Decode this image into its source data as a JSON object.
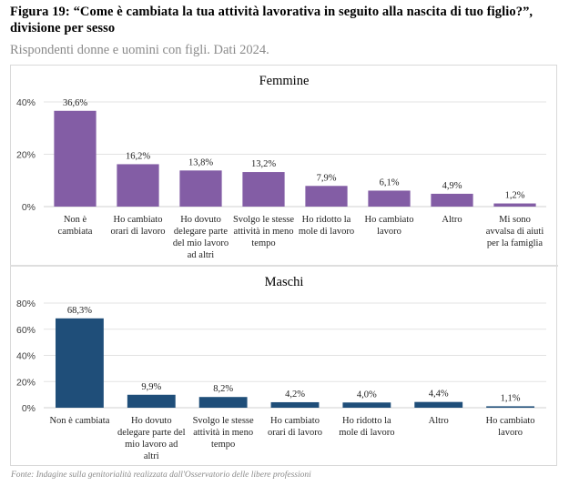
{
  "figure": {
    "title": "Figura 19: “Come è cambiata la tua attività lavorativa in seguito alla nascita di tuo figlio?”, divisione per sesso",
    "subtitle": "Rispondenti donne e uomini con figli. Dati 2024.",
    "source": "Fonte: Indagine sulla genitorialità realizzata dall'Osservatorio delle libere professioni"
  },
  "chart_data": [
    {
      "type": "bar",
      "title": "Femmine",
      "color": "#835DA5",
      "xlabel": "",
      "ylabel": "",
      "ylim": [
        0,
        40
      ],
      "yticks": [
        0,
        20,
        40
      ],
      "ytick_labels": [
        "0%",
        "20%",
        "40%"
      ],
      "grid": true,
      "categories": [
        [
          "Non è",
          "cambiata"
        ],
        [
          "Ho cambiato",
          "orari di lavoro"
        ],
        [
          "Ho dovuto",
          "delegare parte",
          "del mio lavoro",
          "ad altri"
        ],
        [
          "Svolgo le stesse",
          "attività in meno",
          "tempo"
        ],
        [
          "Ho ridotto la",
          "mole di lavoro"
        ],
        [
          "Ho cambiato",
          "lavoro"
        ],
        [
          "Altro"
        ],
        [
          "Mi sono",
          "avvalsa di aiuti",
          "per la famiglia"
        ]
      ],
      "values": [
        36.6,
        16.2,
        13.8,
        13.2,
        7.9,
        6.1,
        4.9,
        1.2
      ],
      "data_labels": [
        "36,6%",
        "16,2%",
        "13,8%",
        "13,2%",
        "7,9%",
        "6,1%",
        "4,9%",
        "1,2%"
      ]
    },
    {
      "type": "bar",
      "title": "Maschi",
      "color": "#1F4E79",
      "xlabel": "",
      "ylabel": "",
      "ylim": [
        0,
        80
      ],
      "yticks": [
        0,
        20,
        40,
        60,
        80
      ],
      "ytick_labels": [
        "0%",
        "20%",
        "40%",
        "60%",
        "80%"
      ],
      "grid": true,
      "categories": [
        [
          "Non è cambiata"
        ],
        [
          "Ho dovuto",
          "delegare parte del",
          "mio lavoro ad",
          "altri"
        ],
        [
          "Svolgo le stesse",
          "attività in meno",
          "tempo"
        ],
        [
          "Ho cambiato",
          "orari di lavoro"
        ],
        [
          "Ho ridotto la",
          "mole di lavoro"
        ],
        [
          "Altro"
        ],
        [
          "Ho cambiato",
          "lavoro"
        ]
      ],
      "values": [
        68.3,
        9.9,
        8.2,
        4.2,
        4.0,
        4.4,
        1.1
      ],
      "data_labels": [
        "68,3%",
        "9,9%",
        "8,2%",
        "4,2%",
        "4,0%",
        "4,4%",
        "1,1%"
      ]
    }
  ]
}
